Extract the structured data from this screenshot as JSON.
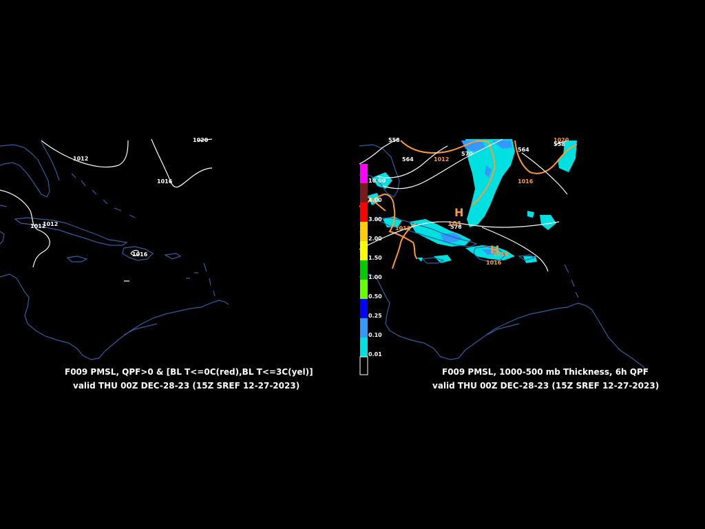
{
  "colors": {
    "background": "#000000",
    "coastline": "#2f5f9f",
    "isobar": "#ffffff",
    "thickness": "#ff9933",
    "qpf_light": "#00e0e0",
    "qpf_mid": "#3399ff",
    "qpf_high": "#0000ff"
  },
  "left_panel": {
    "isobar_labels": [
      "1020",
      "1012",
      "1016",
      "1012",
      "1012",
      "1016"
    ],
    "caption_line1": "F009 PMSL, QPF>0 & [BL T<=0C(red),BL T<=3C(yel)]",
    "caption_line2": "valid THU 00Z DEC-28-23 (15Z SREF 12-27-2023)"
  },
  "right_panel": {
    "thickness_labels": [
      "558",
      "564",
      "570",
      "564",
      "558",
      "576"
    ],
    "isobar_labels": [
      "1012",
      "1016",
      "1020",
      "1012",
      "1016",
      "1016"
    ],
    "high_symbols": [
      "H",
      "H"
    ],
    "high_value_label": "101",
    "caption_line1": "F009 PMSL, 1000-500 mb Thickness, 6h QPF",
    "caption_line2": "valid THU 00Z DEC-28-23 (15Z SREF 12-27-2023)",
    "legend": {
      "items": [
        {
          "label": "10.00",
          "color": "#ff00ff"
        },
        {
          "label": "4.00",
          "color": "#7a1a1a"
        },
        {
          "label": "3.00",
          "color": "#ff0000"
        },
        {
          "label": "2.00",
          "color": "#ffcc00"
        },
        {
          "label": "1.50",
          "color": "#ffff00"
        },
        {
          "label": "1.00",
          "color": "#00cc00"
        },
        {
          "label": "0.50",
          "color": "#66ff00"
        },
        {
          "label": "0.25",
          "color": "#0000ff"
        },
        {
          "label": "0.10",
          "color": "#3399ff"
        },
        {
          "label": "0.01",
          "color": "#00e0e0"
        }
      ]
    }
  }
}
